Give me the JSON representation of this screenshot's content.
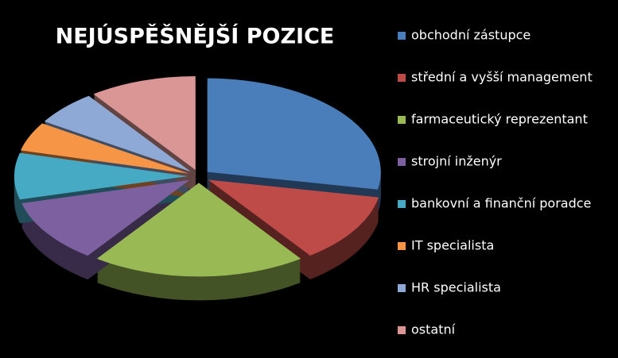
{
  "chart_data": {
    "type": "pie",
    "title": "NEJÚSPĚŠNĚJŠÍ POZICE",
    "categories": [
      "obchodní zástupce",
      "střední a vyšší management",
      "farmaceutický reprezentant",
      "strojní inženýr",
      "bankovní a finanční poradce",
      "IT specialista",
      "HR specialista",
      "ostatní"
    ],
    "values": [
      28,
      12,
      20,
      11,
      8,
      5,
      6,
      10
    ],
    "colors": [
      "#4a7ebb",
      "#be4b48",
      "#98b954",
      "#7d60a0",
      "#46aac5",
      "#f69546",
      "#8fa9d6",
      "#d99694"
    ],
    "legend": "right"
  }
}
